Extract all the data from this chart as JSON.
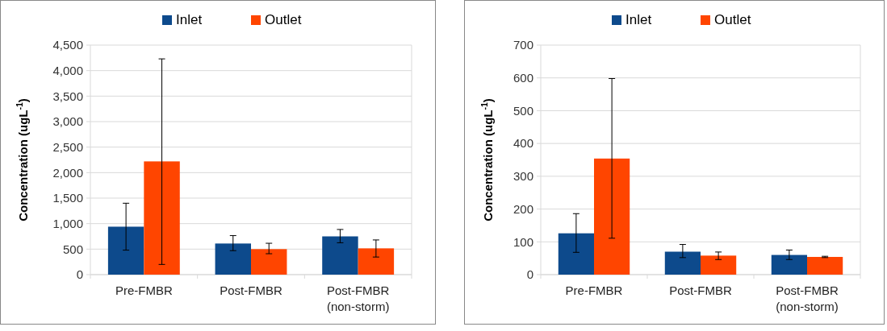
{
  "chart_data": [
    {
      "type": "bar",
      "ylabel": "Concentration (ugL$^{-1}$)",
      "categories": [
        "Pre-FMBR",
        "Post-FMBR",
        "Post-FMBR\n(non-storm)"
      ],
      "ylim": [
        0,
        4500
      ],
      "yticks": [
        {
          "value": 0,
          "label": "0"
        },
        {
          "value": 500,
          "label": "500"
        },
        {
          "value": 1000,
          "label": "1,000"
        },
        {
          "value": 1500,
          "label": "1,500"
        },
        {
          "value": 2000,
          "label": "2,000"
        },
        {
          "value": 2500,
          "label": "2,500"
        },
        {
          "value": 3000,
          "label": "3,000"
        },
        {
          "value": 3500,
          "label": "3,500"
        },
        {
          "value": 4000,
          "label": "4,000"
        },
        {
          "value": 4500,
          "label": "4,500"
        }
      ],
      "grid": "y",
      "legend": "top",
      "series": [
        {
          "name": "Inlet",
          "color": "#0d4a8c",
          "values": [
            940,
            610,
            750
          ],
          "errors": [
            [
              480,
              1400
            ],
            [
              470,
              765
            ],
            [
              625,
              885
            ]
          ]
        },
        {
          "name": "Outlet",
          "color": "#ff4500",
          "values": [
            2220,
            500,
            515
          ],
          "errors": [
            [
              200,
              4230
            ],
            [
              410,
              615
            ],
            [
              345,
              680
            ]
          ]
        }
      ]
    },
    {
      "type": "bar",
      "ylabel": "Concentration (ugL$^{-1}$)",
      "categories": [
        "Pre-FMBR",
        "Post-FMBR",
        "Post-FMBR\n(non-storm)"
      ],
      "ylim": [
        0,
        700
      ],
      "yticks": [
        0,
        100,
        200,
        300,
        400,
        500,
        600,
        700
      ],
      "grid": "y",
      "legend": "top",
      "series": [
        {
          "name": "Inlet",
          "color": "#0d4a8c",
          "values": [
            126,
            70,
            60
          ],
          "errors": [
            [
              68,
              186
            ],
            [
              52,
              92
            ],
            [
              46,
              75
            ]
          ]
        },
        {
          "name": "Outlet",
          "color": "#ff4500",
          "values": [
            354,
            58,
            54
          ],
          "errors": [
            [
              111,
              598
            ],
            [
              46,
              69
            ],
            [
              52,
              56
            ]
          ]
        }
      ]
    }
  ]
}
